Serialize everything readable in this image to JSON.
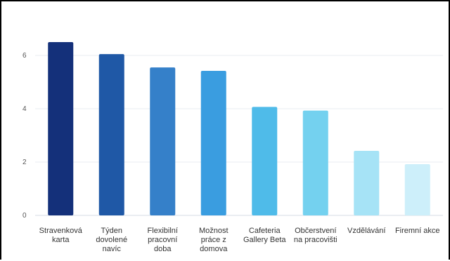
{
  "chart_data": {
    "type": "bar",
    "title": "",
    "xlabel": "",
    "ylabel": "",
    "ylim": [
      0,
      7
    ],
    "yticks": [
      0,
      2,
      4,
      6
    ],
    "grid": true,
    "categories": [
      [
        "Stravenková",
        "karta"
      ],
      [
        "Týden",
        "dovolené",
        "navíc"
      ],
      [
        "Flexibilní",
        "pracovní",
        "doba"
      ],
      [
        "Možnost",
        "práce z",
        "domova"
      ],
      [
        "Cafeteria",
        "Gallery Beta"
      ],
      [
        "Občerstvení",
        "na pracovišti"
      ],
      [
        "Vzdělávání"
      ],
      [
        "Firemní akce"
      ]
    ],
    "values": [
      6.5,
      6.05,
      5.55,
      5.42,
      4.07,
      3.93,
      2.42,
      1.92
    ],
    "colors": [
      "#14307a",
      "#1f58a6",
      "#3580c9",
      "#3a9de0",
      "#4fbbe9",
      "#74d1ef",
      "#a6e3f6",
      "#cdeffa"
    ]
  }
}
